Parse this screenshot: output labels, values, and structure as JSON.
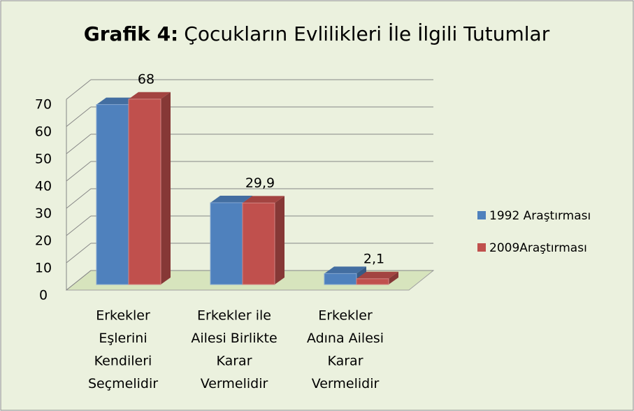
{
  "chart_data": {
    "type": "bar3d",
    "title_label": "Grafik 4:",
    "title": "Çocukların Evlilikleri İle İlgili Tutumlar",
    "categories": [
      [
        "Erkekler",
        "Eşlerini",
        "Kendileri",
        "Seçmelidir"
      ],
      [
        "Erkekler ile",
        "Ailesi Birlikte",
        "Karar",
        "Vermelidir"
      ],
      [
        "Erkekler",
        "Adına Ailesi",
        "Karar",
        "Vermelidir"
      ]
    ],
    "series": [
      {
        "name": "1992 Araştırması",
        "color": "#4f81bd",
        "values": [
          66,
          30,
          4
        ]
      },
      {
        "name": "2009Araştırması",
        "color": "#c0504d",
        "values": [
          68,
          29.9,
          2.1
        ],
        "value_labels": [
          "68",
          "29,9",
          "2,1"
        ]
      }
    ],
    "ylim": [
      0,
      70
    ],
    "yticks": [
      0,
      10,
      20,
      30,
      40,
      50,
      60,
      70
    ],
    "grid": true,
    "legend": "right"
  }
}
